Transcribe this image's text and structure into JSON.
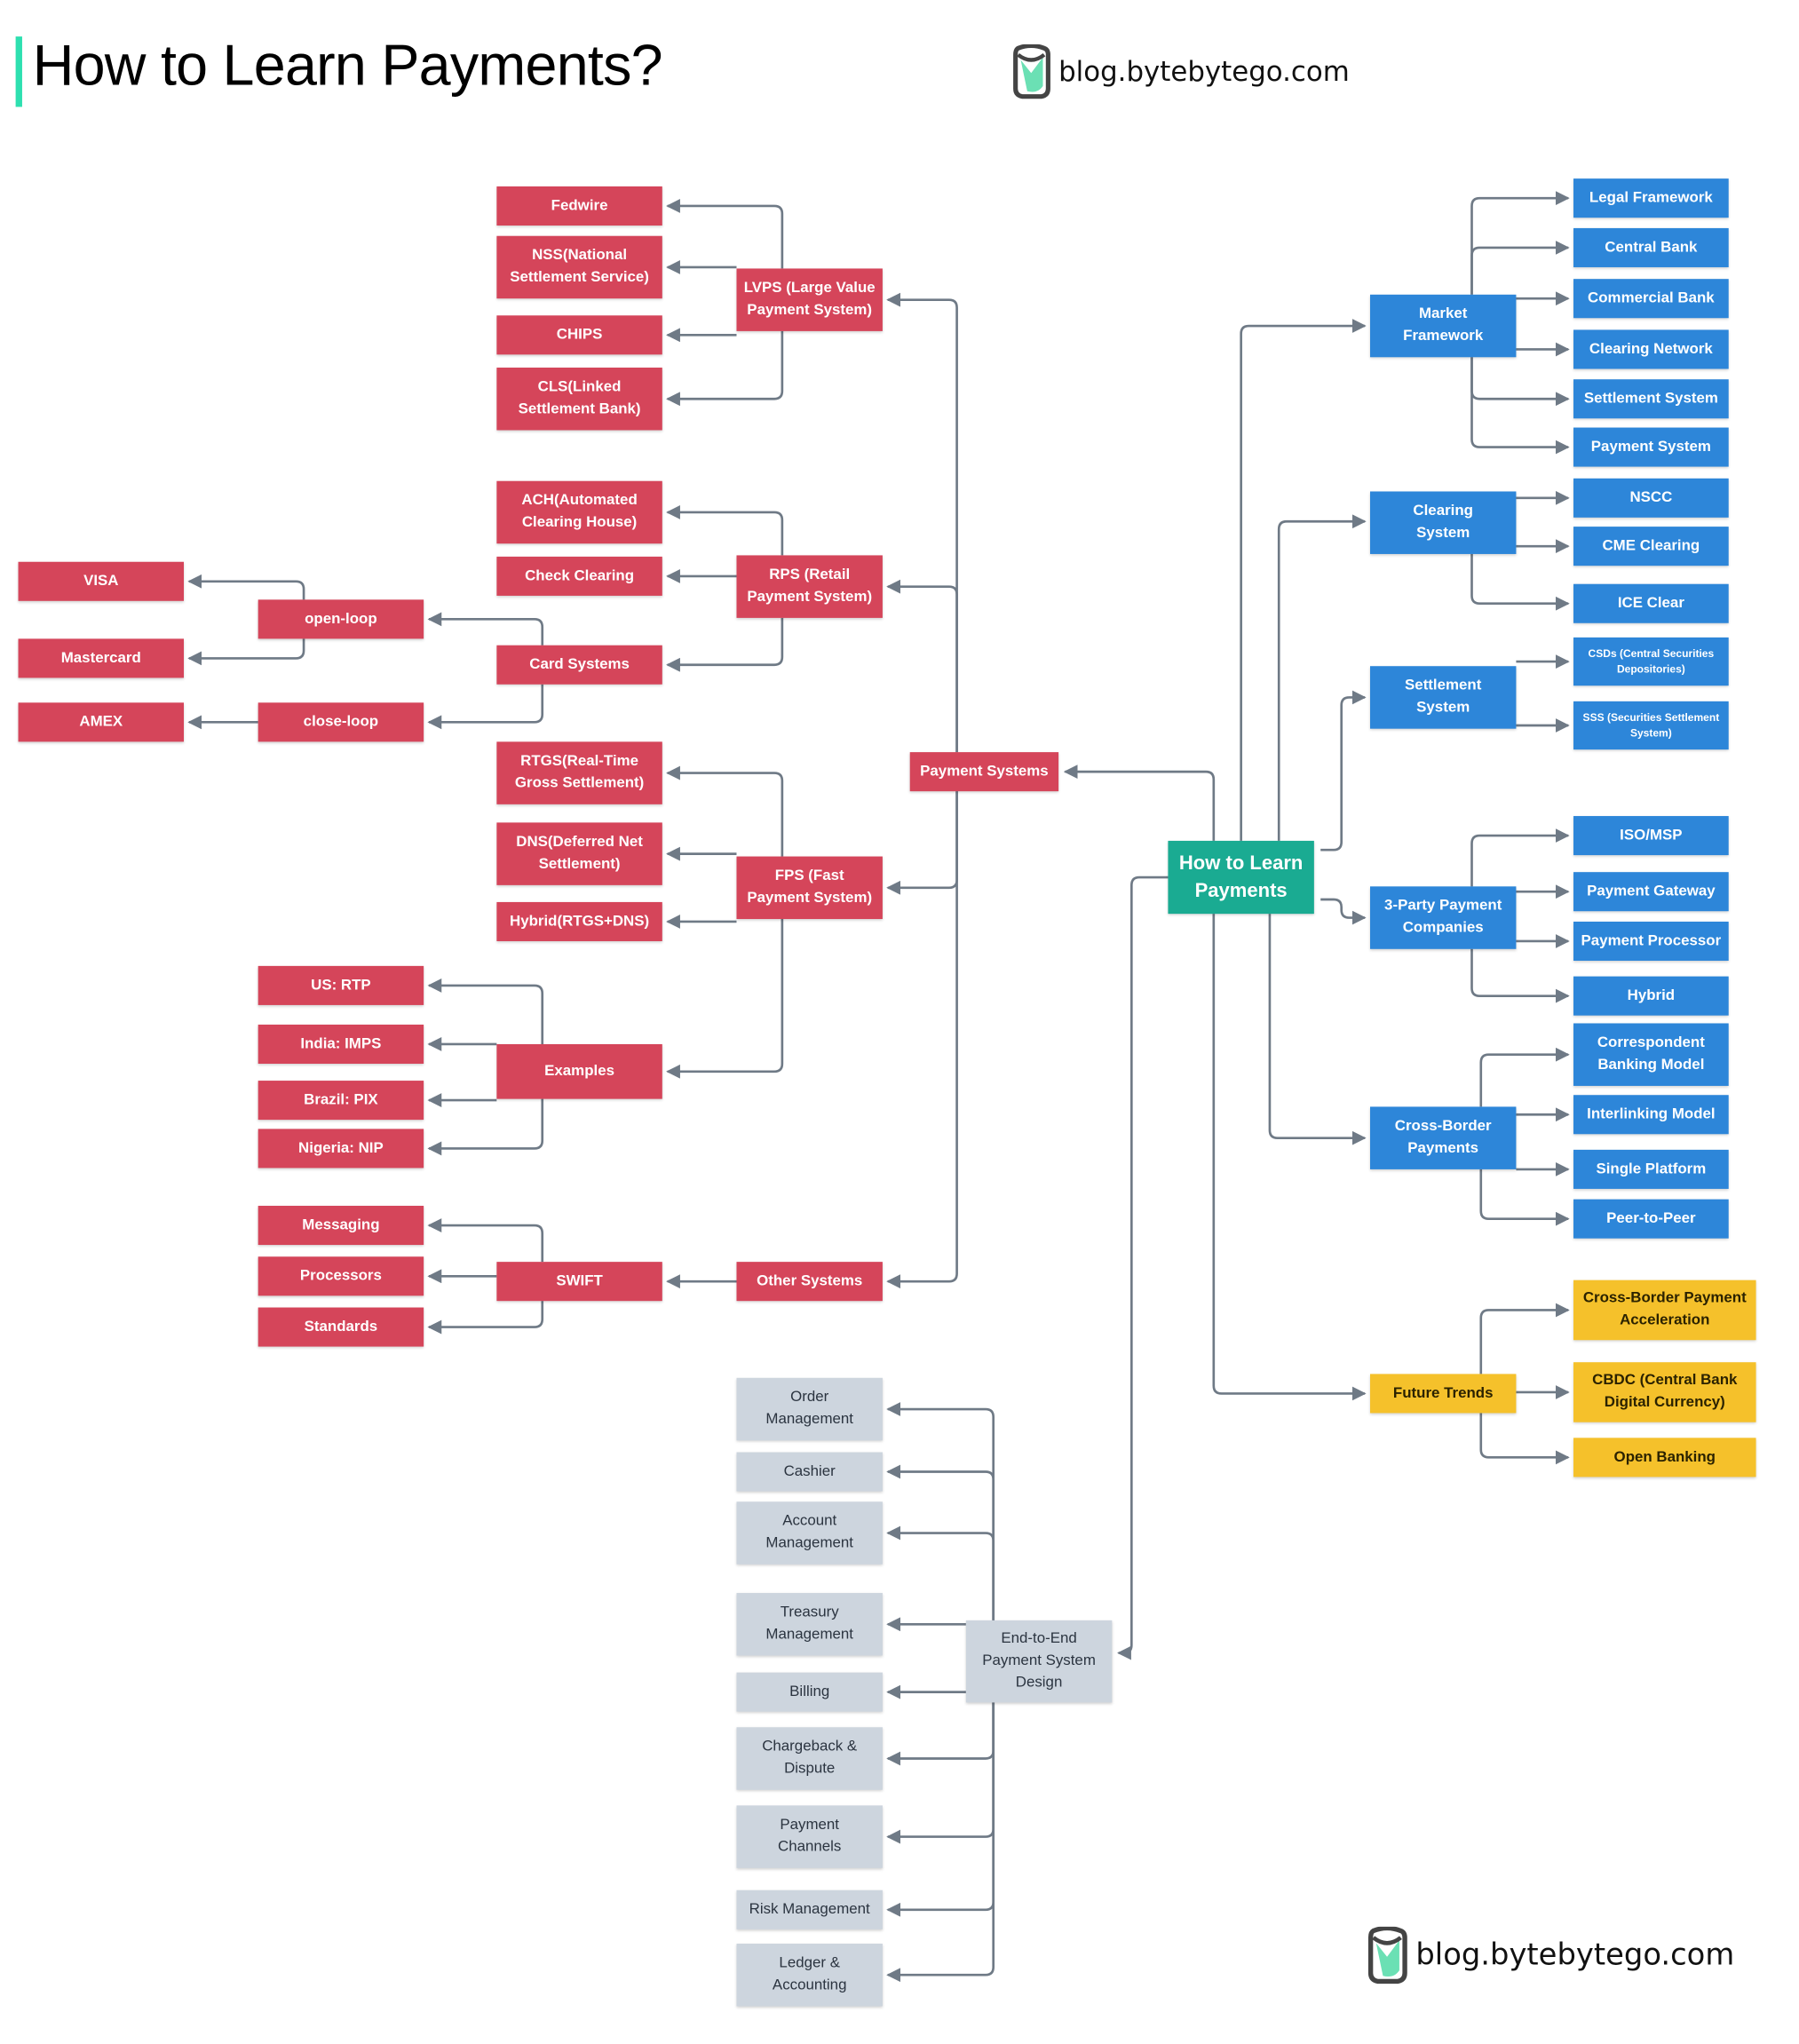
{
  "title": "How to Learn Payments?",
  "brand": {
    "text": "blog.bytebytego.com",
    "icon": "bytebytego-logo-icon"
  },
  "colors": {
    "red": "#d5455a",
    "blue": "#2d86d9",
    "teal": "#1aab92",
    "yellow": "#f5c12b",
    "gray": "#cdd5de",
    "line": "#6f7a86",
    "accent_bar": "#2ee0b0"
  },
  "nodes": [
    {
      "id": "center",
      "label": "How to Learn\nPayments",
      "kind": "teal"
    },
    {
      "id": "ps",
      "label": "Payment Systems",
      "kind": "red"
    },
    {
      "id": "lvps",
      "label": "LVPS (Large Value\nPayment System)",
      "kind": "red"
    },
    {
      "id": "fedwire",
      "label": "Fedwire",
      "kind": "red"
    },
    {
      "id": "nss",
      "label": "NSS(National\nSettlement Service)",
      "kind": "red"
    },
    {
      "id": "chips",
      "label": "CHIPS",
      "kind": "red"
    },
    {
      "id": "cls",
      "label": "CLS(Linked\nSettlement Bank)",
      "kind": "red"
    },
    {
      "id": "rps",
      "label": "RPS (Retail\nPayment System)",
      "kind": "red"
    },
    {
      "id": "ach",
      "label": "ACH(Automated\nClearing House)",
      "kind": "red"
    },
    {
      "id": "check",
      "label": "Check Clearing",
      "kind": "red"
    },
    {
      "id": "card",
      "label": "Card Systems",
      "kind": "red"
    },
    {
      "id": "openloop",
      "label": "open-loop",
      "kind": "red"
    },
    {
      "id": "closeloop",
      "label": "close-loop",
      "kind": "red"
    },
    {
      "id": "visa",
      "label": "VISA",
      "kind": "red"
    },
    {
      "id": "mastercard",
      "label": "Mastercard",
      "kind": "red"
    },
    {
      "id": "amex",
      "label": "AMEX",
      "kind": "red"
    },
    {
      "id": "fps",
      "label": "FPS (Fast\nPayment System)",
      "kind": "red"
    },
    {
      "id": "rtgs",
      "label": "RTGS(Real-Time\nGross Settlement)",
      "kind": "red"
    },
    {
      "id": "dns",
      "label": "DNS(Deferred Net\nSettlement)",
      "kind": "red"
    },
    {
      "id": "hybridrd",
      "label": "Hybrid(RTGS+DNS)",
      "kind": "red"
    },
    {
      "id": "examples",
      "label": "Examples",
      "kind": "red"
    },
    {
      "id": "usrtp",
      "label": "US: RTP",
      "kind": "red"
    },
    {
      "id": "india",
      "label": "India: IMPS",
      "kind": "red"
    },
    {
      "id": "brazil",
      "label": "Brazil: PIX",
      "kind": "red"
    },
    {
      "id": "nigeria",
      "label": "Nigeria: NIP",
      "kind": "red"
    },
    {
      "id": "other",
      "label": "Other Systems",
      "kind": "red"
    },
    {
      "id": "swift",
      "label": "SWIFT",
      "kind": "red"
    },
    {
      "id": "messaging",
      "label": "Messaging",
      "kind": "red"
    },
    {
      "id": "processors",
      "label": "Processors",
      "kind": "red"
    },
    {
      "id": "standards",
      "label": "Standards",
      "kind": "red"
    },
    {
      "id": "e2e",
      "label": "End-to-End\nPayment System\nDesign",
      "kind": "gray"
    },
    {
      "id": "order",
      "label": "Order\nManagement",
      "kind": "gray"
    },
    {
      "id": "cashier",
      "label": "Cashier",
      "kind": "gray"
    },
    {
      "id": "account",
      "label": "Account\nManagement",
      "kind": "gray"
    },
    {
      "id": "treasury",
      "label": "Treasury\nManagement",
      "kind": "gray"
    },
    {
      "id": "billing",
      "label": "Billing",
      "kind": "gray"
    },
    {
      "id": "chargeback",
      "label": "Chargeback &\nDispute",
      "kind": "gray"
    },
    {
      "id": "channels",
      "label": "Payment\nChannels",
      "kind": "gray"
    },
    {
      "id": "risk",
      "label": "Risk Management",
      "kind": "gray"
    },
    {
      "id": "ledger",
      "label": "Ledger &\nAccounting",
      "kind": "gray"
    },
    {
      "id": "market",
      "label": "Market\nFramework",
      "kind": "blue"
    },
    {
      "id": "legal",
      "label": "Legal Framework",
      "kind": "blue"
    },
    {
      "id": "centralbank",
      "label": "Central Bank",
      "kind": "blue"
    },
    {
      "id": "commercial",
      "label": "Commercial Bank",
      "kind": "blue"
    },
    {
      "id": "clearnet",
      "label": "Clearing Network",
      "kind": "blue"
    },
    {
      "id": "settlesys",
      "label": "Settlement System",
      "kind": "blue"
    },
    {
      "id": "paysys",
      "label": "Payment System",
      "kind": "blue"
    },
    {
      "id": "clearing",
      "label": "Clearing\nSystem",
      "kind": "blue"
    },
    {
      "id": "nscc",
      "label": "NSCC",
      "kind": "blue"
    },
    {
      "id": "cme",
      "label": "CME Clearing",
      "kind": "blue"
    },
    {
      "id": "ice",
      "label": "ICE Clear",
      "kind": "blue"
    },
    {
      "id": "settlement",
      "label": "Settlement\nSystem",
      "kind": "blue"
    },
    {
      "id": "csds",
      "label": "CSDs (Central Securities\nDepositories)",
      "kind": "blue"
    },
    {
      "id": "sss",
      "label": "SSS (Securities Settlement\nSystem)",
      "kind": "blue"
    },
    {
      "id": "thirdparty",
      "label": "3-Party Payment\nCompanies",
      "kind": "blue"
    },
    {
      "id": "iso",
      "label": "ISO/MSP",
      "kind": "blue"
    },
    {
      "id": "gateway",
      "label": "Payment Gateway",
      "kind": "blue"
    },
    {
      "id": "processor",
      "label": "Payment Processor",
      "kind": "blue"
    },
    {
      "id": "hybrid",
      "label": "Hybrid",
      "kind": "blue"
    },
    {
      "id": "crossborder",
      "label": "Cross-Border\nPayments",
      "kind": "blue"
    },
    {
      "id": "correspondent",
      "label": "Correspondent\nBanking Model",
      "kind": "blue"
    },
    {
      "id": "interlinking",
      "label": "Interlinking Model",
      "kind": "blue"
    },
    {
      "id": "single",
      "label": "Single Platform",
      "kind": "blue"
    },
    {
      "id": "p2p",
      "label": "Peer-to-Peer",
      "kind": "blue"
    },
    {
      "id": "future",
      "label": "Future Trends",
      "kind": "yellow"
    },
    {
      "id": "cbaccel",
      "label": "Cross-Border Payment\nAcceleration",
      "kind": "yellow"
    },
    {
      "id": "cbdc",
      "label": "CBDC (Central Bank\nDigital Currency)",
      "kind": "yellow"
    },
    {
      "id": "openbanking",
      "label": "Open Banking",
      "kind": "yellow"
    }
  ],
  "edges": [
    {
      "from": "center",
      "to": [
        "ps",
        "e2e",
        "market",
        "clearing",
        "settlement",
        "thirdparty",
        "crossborder",
        "future"
      ]
    },
    {
      "from": "ps",
      "to": [
        "lvps",
        "rps",
        "fps",
        "other"
      ]
    },
    {
      "from": "lvps",
      "to": [
        "fedwire",
        "nss",
        "chips",
        "cls"
      ]
    },
    {
      "from": "rps",
      "to": [
        "ach",
        "check",
        "card"
      ]
    },
    {
      "from": "card",
      "to": [
        "openloop",
        "closeloop"
      ]
    },
    {
      "from": "openloop",
      "to": [
        "visa",
        "mastercard"
      ]
    },
    {
      "from": "closeloop",
      "to": [
        "amex"
      ]
    },
    {
      "from": "fps",
      "to": [
        "rtgs",
        "dns",
        "hybridrd",
        "examples"
      ]
    },
    {
      "from": "examples",
      "to": [
        "usrtp",
        "india",
        "brazil",
        "nigeria"
      ]
    },
    {
      "from": "other",
      "to": [
        "swift"
      ]
    },
    {
      "from": "swift",
      "to": [
        "messaging",
        "processors",
        "standards"
      ]
    },
    {
      "from": "e2e",
      "to": [
        "order",
        "cashier",
        "account",
        "treasury",
        "billing",
        "chargeback",
        "channels",
        "risk",
        "ledger"
      ]
    },
    {
      "from": "market",
      "to": [
        "legal",
        "centralbank",
        "commercial",
        "clearnet",
        "settlesys",
        "paysys"
      ]
    },
    {
      "from": "clearing",
      "to": [
        "nscc",
        "cme",
        "ice"
      ]
    },
    {
      "from": "settlement",
      "to": [
        "csds",
        "sss"
      ]
    },
    {
      "from": "thirdparty",
      "to": [
        "iso",
        "gateway",
        "processor",
        "hybrid"
      ]
    },
    {
      "from": "crossborder",
      "to": [
        "correspondent",
        "interlinking",
        "single",
        "p2p"
      ]
    },
    {
      "from": "future",
      "to": [
        "cbaccel",
        "cbdc",
        "openbanking"
      ]
    }
  ]
}
